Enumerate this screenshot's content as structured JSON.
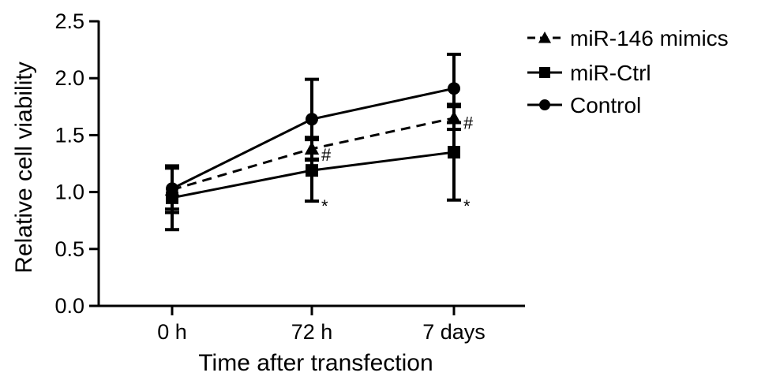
{
  "chart_data": {
    "type": "line",
    "categories": [
      "0 h",
      "72 h",
      "7 days"
    ],
    "xlabel": "Time after transfection",
    "ylabel": "Relative cell viability",
    "ylim": [
      0.0,
      2.5
    ],
    "yticks": [
      0.0,
      0.5,
      1.0,
      1.5,
      2.0,
      2.5
    ],
    "ytick_labels": [
      "0.0",
      "0.5",
      "1.0",
      "1.5",
      "2.0",
      "2.5"
    ],
    "grid": false,
    "legend": {
      "placement": "top-right"
    },
    "series": [
      {
        "name": "miR-146 mimics",
        "marker": "triangle",
        "dashed": true,
        "values": [
          1.02,
          1.38,
          1.65
        ],
        "errors": [
          0.2,
          0.1,
          0.1
        ]
      },
      {
        "name": "miR-Ctrl",
        "marker": "square",
        "dashed": false,
        "values": [
          0.95,
          1.19,
          1.35
        ],
        "errors": [
          0.28,
          0.27,
          0.42
        ]
      },
      {
        "name": "Control",
        "marker": "circle",
        "dashed": false,
        "values": [
          1.03,
          1.64,
          1.91
        ],
        "errors": [
          0.18,
          0.35,
          0.3
        ]
      }
    ],
    "annotations": [
      {
        "category": "72 h",
        "y": 1.33,
        "text": "#"
      },
      {
        "category": "7 days",
        "y": 1.61,
        "text": "#"
      },
      {
        "category": "72 h",
        "y": 0.92,
        "text": "*"
      },
      {
        "category": "7 days",
        "y": 0.92,
        "text": "*"
      }
    ]
  }
}
